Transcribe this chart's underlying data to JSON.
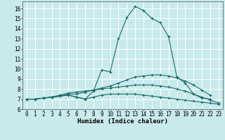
{
  "xlabel": "Humidex (Indice chaleur)",
  "background_color": "#c8eaea",
  "grid_color": "#ffffff",
  "line_color": "#1a6b6b",
  "xlim": [
    -0.5,
    23.5
  ],
  "ylim": [
    6.0,
    16.7
  ],
  "xticks": [
    0,
    1,
    2,
    3,
    4,
    5,
    6,
    7,
    8,
    9,
    10,
    11,
    12,
    13,
    14,
    15,
    16,
    17,
    18,
    19,
    20,
    21,
    22,
    23
  ],
  "yticks": [
    6,
    7,
    8,
    9,
    10,
    11,
    12,
    13,
    14,
    15,
    16
  ],
  "series": [
    [
      7.0,
      7.0,
      7.1,
      7.2,
      7.3,
      7.4,
      7.2,
      7.0,
      7.8,
      9.9,
      9.7,
      13.0,
      15.1,
      16.2,
      15.8,
      15.0,
      14.6,
      13.2,
      9.2,
      8.6,
      7.5,
      7.1,
      7.0,
      null
    ],
    [
      7.0,
      7.0,
      7.1,
      7.2,
      7.3,
      7.5,
      7.5,
      7.7,
      7.9,
      8.1,
      8.3,
      8.6,
      8.9,
      9.2,
      9.3,
      9.4,
      9.4,
      9.3,
      9.1,
      8.8,
      8.4,
      7.9,
      7.4,
      null
    ],
    [
      7.0,
      7.0,
      7.1,
      7.2,
      7.4,
      7.6,
      7.7,
      7.8,
      7.9,
      8.0,
      8.1,
      8.2,
      8.3,
      8.4,
      8.4,
      8.4,
      8.3,
      8.2,
      8.0,
      7.8,
      7.5,
      7.2,
      6.9,
      6.6
    ],
    [
      7.0,
      7.0,
      7.1,
      7.2,
      7.3,
      7.4,
      7.2,
      7.0,
      7.2,
      7.4,
      7.5,
      7.5,
      7.5,
      7.5,
      7.4,
      7.3,
      7.2,
      7.1,
      7.0,
      6.9,
      6.8,
      6.7,
      6.6,
      6.5
    ]
  ],
  "xlabel_fontsize": 6.5,
  "tick_fontsize": 5.5
}
